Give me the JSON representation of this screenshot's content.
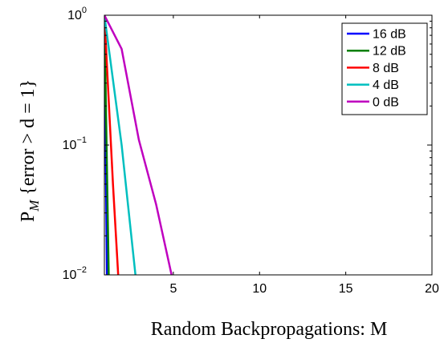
{
  "chart_data": {
    "type": "line",
    "xlabel": "Random Backpropagations: M",
    "ylabel": "P_M {error > d = 1}",
    "ylabel_parts": {
      "p": "P",
      "sub": "M",
      "rest": " {error > d = 1}"
    },
    "xlim": [
      1,
      20
    ],
    "ylim": [
      0.01,
      1
    ],
    "y_scale": "log",
    "grid": false,
    "legend_placement": "top-right",
    "x_ticks": [
      {
        "value": 5,
        "label": "5"
      },
      {
        "value": 10,
        "label": "10"
      },
      {
        "value": 15,
        "label": "15"
      },
      {
        "value": 20,
        "label": "20"
      }
    ],
    "y_ticks": [
      {
        "value": 1,
        "base": "10",
        "exp": "0"
      },
      {
        "value": 0.1,
        "base": "10",
        "exp": "−1"
      },
      {
        "value": 0.01,
        "base": "10",
        "exp": "−2"
      }
    ],
    "series": [
      {
        "name": "16 dB",
        "color": "#0000ff",
        "x": [
          1,
          1.15
        ],
        "y": [
          1,
          0.01
        ]
      },
      {
        "name": "12 dB",
        "color": "#007f00",
        "x": [
          1,
          1.25
        ],
        "y": [
          1,
          0.01
        ]
      },
      {
        "name": "8 dB",
        "color": "#ff0000",
        "x": [
          1,
          1.5,
          1.8
        ],
        "y": [
          1,
          0.05,
          0.01
        ]
      },
      {
        "name": "4 dB",
        "color": "#00bfbf",
        "x": [
          1,
          2,
          2.8
        ],
        "y": [
          1,
          0.1,
          0.01
        ]
      },
      {
        "name": "0 dB",
        "color": "#bf00bf",
        "x": [
          1,
          2,
          3,
          4,
          4.9
        ],
        "y": [
          1,
          0.55,
          0.11,
          0.035,
          0.01
        ]
      }
    ]
  }
}
